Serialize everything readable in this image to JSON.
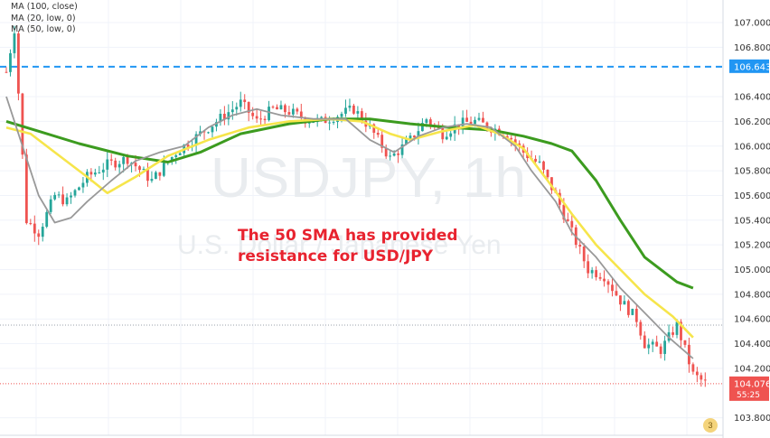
{
  "legend": [
    "MA (100, close)",
    "MA (20, low, 0)",
    "MA (50, low, 0)"
  ],
  "watermark": {
    "symbol": "USDJPY, 1h",
    "description": "U.S. Dollar / Japanese Yen"
  },
  "annotation": {
    "line1": "The 50 SMA has provided",
    "line2": "resistance for USD/JPY"
  },
  "badge": {
    "count": "3"
  },
  "colors": {
    "up": "#26a69a",
    "down": "#ef5350",
    "ma100": "#3c9b1f",
    "ma20": "#999999",
    "ma50": "#f6e54b",
    "level_line": "#2196f3",
    "last_price": "#ef5350"
  },
  "chart_data": {
    "type": "candlestick",
    "symbol": "USDJPY",
    "y_ticks": [
      "107.000",
      "106.800",
      "106.400",
      "106.200",
      "106.000",
      "105.800",
      "105.600",
      "105.400",
      "105.200",
      "105.000",
      "104.800",
      "104.600",
      "104.400",
      "104.200",
      "103.800"
    ],
    "ylim": [
      103.75,
      107.15
    ],
    "horizontal_level": {
      "value": 106.643,
      "label": "106.643",
      "style": "dashed"
    },
    "last_price": {
      "value": 104.076,
      "label": "104.076",
      "countdown": "55:25"
    },
    "dotted_levels": [
      104.55,
      104.076
    ],
    "candle_count": 160,
    "price_path": [
      [
        0,
        106.6
      ],
      [
        2,
        106.95
      ],
      [
        5,
        105.4
      ],
      [
        8,
        105.3
      ],
      [
        12,
        105.6
      ],
      [
        15,
        105.55
      ],
      [
        20,
        105.75
      ],
      [
        25,
        105.85
      ],
      [
        30,
        105.9
      ],
      [
        36,
        105.72
      ],
      [
        42,
        105.95
      ],
      [
        48,
        106.1
      ],
      [
        54,
        106.25
      ],
      [
        58,
        106.35
      ],
      [
        62,
        106.2
      ],
      [
        66,
        106.3
      ],
      [
        70,
        106.28
      ],
      [
        74,
        106.22
      ],
      [
        78,
        106.2
      ],
      [
        82,
        106.25
      ],
      [
        86,
        106.3
      ],
      [
        90,
        106.15
      ],
      [
        95,
        105.9
      ],
      [
        100,
        106.05
      ],
      [
        104,
        106.22
      ],
      [
        108,
        106.1
      ],
      [
        112,
        106.18
      ],
      [
        116,
        106.2
      ],
      [
        120,
        106.15
      ],
      [
        124,
        106.1
      ],
      [
        128,
        105.95
      ],
      [
        132,
        105.85
      ],
      [
        136,
        105.6
      ],
      [
        140,
        105.3
      ],
      [
        144,
        105.0
      ],
      [
        148,
        104.95
      ],
      [
        152,
        104.75
      ],
      [
        156,
        104.6
      ],
      [
        158,
        104.4
      ],
      [
        162,
        104.35
      ],
      [
        166,
        104.55
      ],
      [
        170,
        104.15
      ],
      [
        173,
        104.08
      ]
    ],
    "ma_series": [
      {
        "name": "MA (100, close)",
        "color": "#3c9b1f",
        "points": [
          [
            0,
            106.2
          ],
          [
            8,
            106.12
          ],
          [
            18,
            106.02
          ],
          [
            30,
            105.92
          ],
          [
            40,
            105.87
          ],
          [
            48,
            105.95
          ],
          [
            58,
            106.1
          ],
          [
            70,
            106.18
          ],
          [
            80,
            106.22
          ],
          [
            90,
            106.22
          ],
          [
            100,
            106.18
          ],
          [
            110,
            106.15
          ],
          [
            120,
            106.13
          ],
          [
            128,
            106.08
          ],
          [
            135,
            106.02
          ],
          [
            140,
            105.96
          ],
          [
            146,
            105.72
          ],
          [
            152,
            105.4
          ],
          [
            158,
            105.1
          ],
          [
            166,
            104.9
          ],
          [
            170,
            104.85
          ]
        ]
      },
      {
        "name": "MA (50, low, 0)",
        "color": "#f6e54b",
        "points": [
          [
            0,
            106.15
          ],
          [
            6,
            106.1
          ],
          [
            12,
            105.95
          ],
          [
            20,
            105.75
          ],
          [
            25,
            105.62
          ],
          [
            32,
            105.75
          ],
          [
            40,
            105.92
          ],
          [
            50,
            106.05
          ],
          [
            60,
            106.15
          ],
          [
            70,
            106.2
          ],
          [
            80,
            106.22
          ],
          [
            88,
            106.2
          ],
          [
            95,
            106.1
          ],
          [
            100,
            106.05
          ],
          [
            108,
            106.12
          ],
          [
            116,
            106.17
          ],
          [
            122,
            106.1
          ],
          [
            128,
            105.98
          ],
          [
            134,
            105.72
          ],
          [
            140,
            105.45
          ],
          [
            146,
            105.2
          ],
          [
            152,
            105.0
          ],
          [
            158,
            104.8
          ],
          [
            165,
            104.62
          ],
          [
            170,
            104.45
          ]
        ]
      },
      {
        "name": "MA (20, low, 0)",
        "color": "#999999",
        "points": [
          [
            0,
            106.4
          ],
          [
            4,
            106.0
          ],
          [
            8,
            105.6
          ],
          [
            12,
            105.38
          ],
          [
            16,
            105.42
          ],
          [
            20,
            105.55
          ],
          [
            26,
            105.72
          ],
          [
            32,
            105.88
          ],
          [
            38,
            105.95
          ],
          [
            44,
            106.0
          ],
          [
            50,
            106.15
          ],
          [
            56,
            106.25
          ],
          [
            62,
            106.3
          ],
          [
            68,
            106.25
          ],
          [
            76,
            106.22
          ],
          [
            84,
            106.22
          ],
          [
            90,
            106.05
          ],
          [
            96,
            105.95
          ],
          [
            102,
            106.08
          ],
          [
            108,
            106.15
          ],
          [
            114,
            106.18
          ],
          [
            120,
            106.15
          ],
          [
            126,
            106.0
          ],
          [
            130,
            105.8
          ],
          [
            136,
            105.55
          ],
          [
            140,
            105.3
          ],
          [
            146,
            105.1
          ],
          [
            152,
            104.85
          ],
          [
            158,
            104.65
          ],
          [
            164,
            104.45
          ],
          [
            170,
            104.28
          ]
        ]
      }
    ]
  }
}
